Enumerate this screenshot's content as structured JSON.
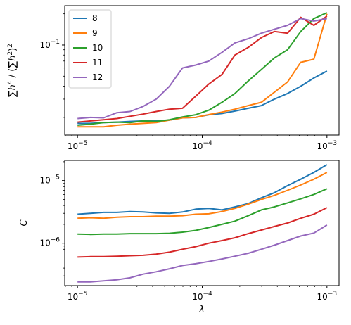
{
  "chart_data": [
    {
      "type": "line",
      "xscale": "log",
      "yscale": "log",
      "xlim": [
        7.9e-06,
        0.00125
      ],
      "ylim": [
        0.0135,
        0.24
      ],
      "xticks": [
        {
          "value": 1e-05,
          "label": "10",
          "exp": "−5"
        },
        {
          "value": 0.0001,
          "label": "10",
          "exp": "−4"
        },
        {
          "value": 0.001,
          "label": "10",
          "exp": "−3"
        }
      ],
      "yticks": [
        {
          "value": 0.1,
          "label": "10",
          "exp": "−1"
        }
      ],
      "ylabel": "Σ_i h_i^4 / (Σ_i h_i^2)^2",
      "xlabel": "",
      "legend": "top-left",
      "x": [
        1e-05,
        1.27e-05,
        1.62e-05,
        2.07e-05,
        2.64e-05,
        3.36e-05,
        4.28e-05,
        5.46e-05,
        6.95e-05,
        8.86e-05,
        0.000113,
        0.000144,
        0.000183,
        0.000234,
        0.000298,
        0.000379,
        0.000483,
        0.000616,
        0.000785,
        0.001
      ],
      "series": [
        {
          "name": "8",
          "color": "#1f77b4",
          "values": [
            0.0175,
            0.0175,
            0.0178,
            0.018,
            0.0183,
            0.0185,
            0.0185,
            0.0188,
            0.0198,
            0.02,
            0.0212,
            0.0218,
            0.023,
            0.0245,
            0.026,
            0.03,
            0.034,
            0.04,
            0.048,
            0.056
          ]
        },
        {
          "name": "9",
          "color": "#ff7f0e",
          "values": [
            0.0162,
            0.0162,
            0.0162,
            0.0168,
            0.0172,
            0.0175,
            0.0178,
            0.0188,
            0.0198,
            0.02,
            0.0213,
            0.0225,
            0.024,
            0.026,
            0.028,
            0.035,
            0.044,
            0.068,
            0.073,
            0.2
          ]
        },
        {
          "name": "10",
          "color": "#2ca02c",
          "values": [
            0.0168,
            0.0172,
            0.0178,
            0.018,
            0.0178,
            0.0185,
            0.0183,
            0.019,
            0.0202,
            0.0212,
            0.0235,
            0.028,
            0.034,
            0.045,
            0.058,
            0.075,
            0.09,
            0.135,
            0.18,
            0.205
          ]
        },
        {
          "name": "11",
          "color": "#d62728",
          "values": [
            0.018,
            0.0185,
            0.019,
            0.0195,
            0.0205,
            0.0215,
            0.0228,
            0.024,
            0.0245,
            0.032,
            0.042,
            0.052,
            0.08,
            0.095,
            0.118,
            0.135,
            0.13,
            0.185,
            0.155,
            0.19
          ]
        },
        {
          "name": "12",
          "color": "#9467bd",
          "values": [
            0.0195,
            0.02,
            0.0198,
            0.0222,
            0.0228,
            0.0255,
            0.03,
            0.04,
            0.06,
            0.064,
            0.07,
            0.085,
            0.105,
            0.115,
            0.13,
            0.142,
            0.155,
            0.18,
            0.17,
            0.18
          ]
        }
      ]
    },
    {
      "type": "line",
      "xscale": "log",
      "yscale": "log",
      "xlim": [
        7.9e-06,
        0.00125
      ],
      "ylim": [
        2.1e-07,
        2.1e-05
      ],
      "xticks": [
        {
          "value": 1e-05,
          "label": "10",
          "exp": "−5"
        },
        {
          "value": 0.0001,
          "label": "10",
          "exp": "−4"
        },
        {
          "value": 0.001,
          "label": "10",
          "exp": "−3"
        }
      ],
      "yticks": [
        {
          "value": 1e-05,
          "label": "10",
          "exp": "−5"
        },
        {
          "value": 1e-06,
          "label": "10",
          "exp": "−6"
        }
      ],
      "ylabel": "C",
      "xlabel": "λ",
      "x": [
        1e-05,
        1.27e-05,
        1.62e-05,
        2.07e-05,
        2.64e-05,
        3.36e-05,
        4.28e-05,
        5.46e-05,
        6.95e-05,
        8.86e-05,
        0.000113,
        0.000144,
        0.000183,
        0.000234,
        0.000298,
        0.000379,
        0.000483,
        0.000616,
        0.000785,
        0.001
      ],
      "series": [
        {
          "name": "8",
          "color": "#1f77b4",
          "values": [
            2.9e-06,
            3e-06,
            3.1e-06,
            3.1e-06,
            3.2e-06,
            3.15e-06,
            3.05e-06,
            3e-06,
            3.15e-06,
            3.5e-06,
            3.6e-06,
            3.4e-06,
            3.8e-06,
            4.3e-06,
            5.3e-06,
            6.4e-06,
            8.3e-06,
            1.05e-05,
            1.35e-05,
            1.8e-05
          ]
        },
        {
          "name": "9",
          "color": "#ff7f0e",
          "values": [
            2.5e-06,
            2.55e-06,
            2.5e-06,
            2.6e-06,
            2.65e-06,
            2.65e-06,
            2.7e-06,
            2.7e-06,
            2.75e-06,
            2.9e-06,
            2.95e-06,
            3.2e-06,
            3.6e-06,
            4.2e-06,
            5e-06,
            5.8e-06,
            7e-06,
            8.5e-06,
            1.05e-05,
            1.35e-05
          ]
        },
        {
          "name": "10",
          "color": "#2ca02c",
          "values": [
            1.4e-06,
            1.38e-06,
            1.4e-06,
            1.4e-06,
            1.42e-06,
            1.42e-06,
            1.42e-06,
            1.44e-06,
            1.5e-06,
            1.6e-06,
            1.78e-06,
            2e-06,
            2.25e-06,
            2.75e-06,
            3.4e-06,
            3.8e-06,
            4.4e-06,
            5.1e-06,
            6e-06,
            7.4e-06
          ]
        },
        {
          "name": "11",
          "color": "#d62728",
          "values": [
            6e-07,
            6.1e-07,
            6.1e-07,
            6.2e-07,
            6.3e-07,
            6.4e-07,
            6.7e-07,
            7.2e-07,
            8e-07,
            8.8e-07,
            1e-06,
            1.1e-06,
            1.22e-06,
            1.42e-06,
            1.62e-06,
            1.85e-06,
            2.1e-06,
            2.5e-06,
            2.9e-06,
            3.7e-06
          ]
        },
        {
          "name": "12",
          "color": "#9467bd",
          "values": [
            2.4e-07,
            2.4e-07,
            2.5e-07,
            2.6e-07,
            2.8e-07,
            3.2e-07,
            3.5e-07,
            3.9e-07,
            4.4e-07,
            4.7e-07,
            5.1e-07,
            5.6e-07,
            6.2e-07,
            6.9e-07,
            8e-07,
            9.3e-07,
            1.1e-06,
            1.3e-06,
            1.45e-06,
            1.95e-06
          ]
        }
      ]
    }
  ]
}
